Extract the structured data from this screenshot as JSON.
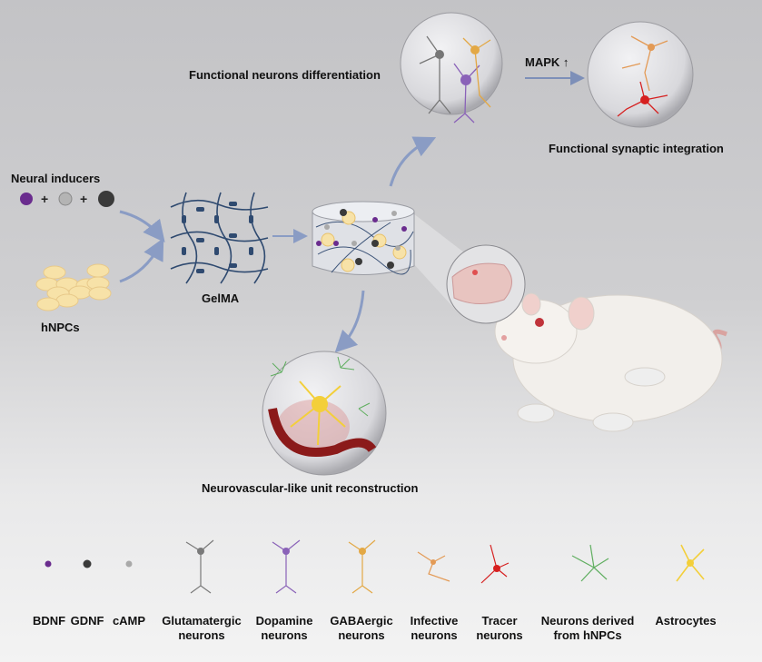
{
  "labels": {
    "neural_inducers": "Neural inducers",
    "hnpcs": "hNPCs",
    "gelma": "GelMA",
    "functional_differentiation": "Functional neurons differentiation",
    "mapk": "MAPK ↑",
    "synaptic_integration": "Functional synaptic integration",
    "neurovascular": "Neurovascular-like unit reconstruction"
  },
  "legend": [
    {
      "label": "BDNF",
      "color": "#6a2c8e"
    },
    {
      "label": "GDNF",
      "color": "#3a3a3a"
    },
    {
      "label": "cAMP",
      "color": "#a9a9a9"
    },
    {
      "label": "Glutamatergic\nneurons",
      "color": "#7a7a7a"
    },
    {
      "label": "Dopamine\nneurons",
      "color": "#8a62b8"
    },
    {
      "label": "GABAergic\nneurons",
      "color": "#e3a845"
    },
    {
      "label": "Infective\nneurons",
      "color": "#e39a55"
    },
    {
      "label": "Tracer\nneurons",
      "color": "#d62020"
    },
    {
      "label": "Neurons derived\nfrom hNPCs",
      "color": "#5fae5f"
    },
    {
      "label": "Astrocytes",
      "color": "#f3cf3a"
    }
  ],
  "colors": {
    "arrow": "#8a9cc4",
    "mesh": "#2f4a70",
    "cell": "#f7e2a8"
  }
}
